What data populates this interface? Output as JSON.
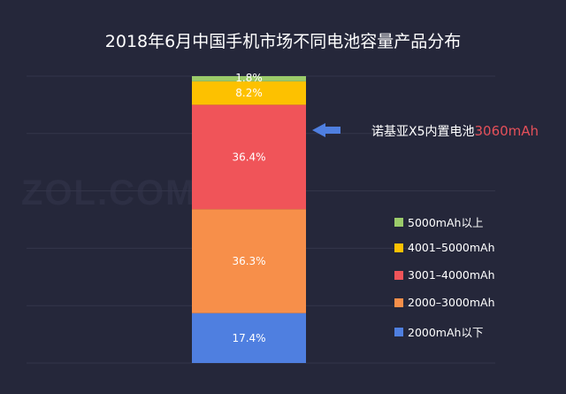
{
  "chart_data": {
    "type": "bar",
    "stacked": true,
    "title": "2018年6月中国手机市场不同电池容量产品分布",
    "ylim": [
      0,
      100
    ],
    "grid": true,
    "legend_placement": "right",
    "series": [
      {
        "name": "2000mAh以下",
        "value": 17.4,
        "label": "17.4%",
        "color": "#4f7fe0"
      },
      {
        "name": "2000–3000mAh",
        "value": 36.3,
        "label": "36.3%",
        "color": "#f78f4a"
      },
      {
        "name": "3001–4000mAh",
        "value": 36.4,
        "label": "36.4%",
        "color": "#f05459"
      },
      {
        "name": "4001–5000mAh",
        "value": 8.2,
        "label": "8.2%",
        "color": "#fdc100"
      },
      {
        "name": "5000mAh以上",
        "value": 1.8,
        "label": "1.8%",
        "color": "#9bcb6a"
      }
    ],
    "annotation": {
      "text": "诺基亚X5内置电池",
      "highlight": "3060mAh",
      "arrow_color": "#4f7fe0",
      "highlight_color": "#e5505a"
    }
  },
  "watermark": "ZOL.COM.CN"
}
